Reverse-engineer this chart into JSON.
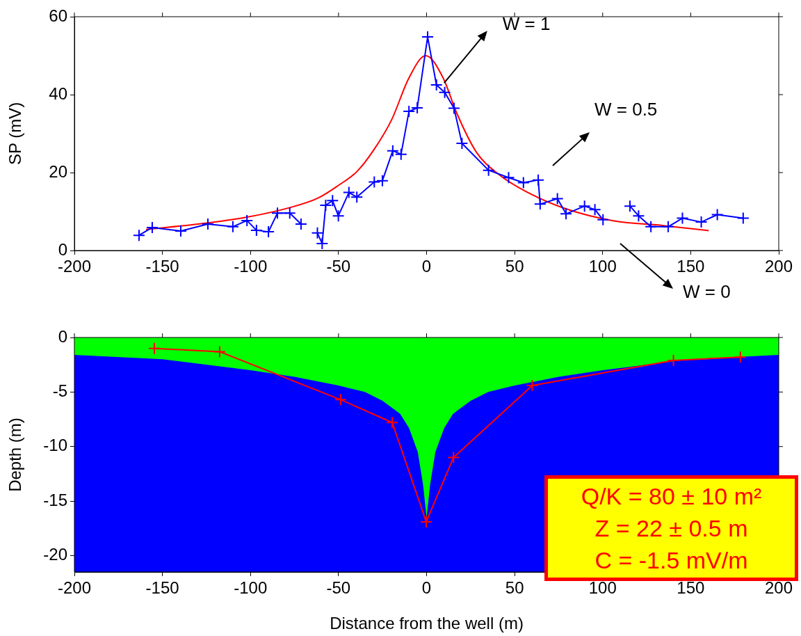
{
  "chart_data": [
    {
      "type": "line",
      "ylabel": "SP (mV)",
      "xlim": [
        -200,
        200
      ],
      "xticks": [
        -200,
        -150,
        -100,
        -50,
        0,
        50,
        100,
        150,
        200
      ],
      "ylim": [
        0,
        60
      ],
      "yticks": [
        0,
        20,
        40,
        60
      ],
      "grid": false,
      "legend": false,
      "annotations": [
        {
          "text": "W = 1",
          "x": 10,
          "y": 43
        },
        "W = 0.5",
        "W = 0"
      ],
      "series": [
        {
          "color": "#0000ff",
          "marker": "cross",
          "x": [
            -163.3,
            -155.8,
            -139.6,
            -124.2,
            -110,
            -102,
            -96.6,
            -89.8,
            -84.7,
            -77.7,
            -71.3,
            -66,
            -62,
            -59.3,
            -57.3,
            -53.4,
            -50.1,
            -44.1,
            -39.6,
            -29.7,
            -25.1,
            -19.2,
            -14.5,
            -10,
            -5.3,
            0.6,
            5.6,
            10.3,
            15.6,
            20.1,
            35.2,
            46.6,
            55,
            63.4,
            64.5,
            74.3,
            79.2,
            89.7,
            95.6,
            100.2,
            106,
            115.5,
            120.4,
            127.4,
            137.2,
            145.3,
            156,
            165.1,
            179.8
          ],
          "values": [
            3.9,
            5.9,
            5.0,
            6.8,
            6.1,
            7.7,
            5.2,
            4.8,
            9.6,
            9.6,
            6.8,
            null,
            4.5,
            1.8,
            11.6,
            12.8,
            8.9,
            14.9,
            13.7,
            17.6,
            17.9,
            25.6,
            24.7,
            35.7,
            36.6,
            54.8,
            42.5,
            40.6,
            36.5,
            27.5,
            20.6,
            18.7,
            17.4,
            18.1,
            11.9,
            13.3,
            9.4,
            11.4,
            10.5,
            7.9,
            null,
            11.4,
            8.9,
            6.1,
            6.1,
            8.3,
            7.3,
            9.2,
            8.3
          ]
        },
        {
          "color": "#ff0000",
          "marker": "none",
          "x": [
            -159.3,
            -123.8,
            -101.4,
            -77.7,
            -61.9,
            -50.1,
            -39.7,
            -30.3,
            -19.8,
            -10,
            -0.5,
            9.4,
            17,
            28.2,
            40.8,
            56.2,
            78.5,
            106.5,
            134.4,
            160.2
          ],
          "values": [
            5.4,
            7.1,
            8.6,
            11,
            13.4,
            16.7,
            20.2,
            25.6,
            33.6,
            44.3,
            50,
            44.3,
            35.4,
            25.3,
            19.6,
            15.2,
            10.8,
            7.6,
            6.4,
            5.1
          ]
        }
      ]
    },
    {
      "type": "area",
      "xlabel": "Distance from the well (m)",
      "ylabel": "Depth (m)",
      "xlim": [
        -200,
        200
      ],
      "xticks": [
        -200,
        -150,
        -100,
        -50,
        0,
        50,
        100,
        150,
        200
      ],
      "ylim": [
        -21.5,
        0
      ],
      "yticks": [
        -20,
        -15,
        -10,
        -5,
        0
      ],
      "grid": false,
      "legend": false,
      "annotations": [
        "Q/K = 80 ± 10 m²",
        "Z = 22 ± 0.5 m",
        "C = -1.5 mV/m"
      ],
      "x": [
        -200,
        -150,
        -100,
        -75,
        -50,
        -35,
        -25,
        -15,
        -10,
        -5,
        -2,
        0,
        2,
        5,
        10,
        15,
        25,
        35,
        50,
        75,
        100,
        150,
        200
      ],
      "series": [
        {
          "type": "area",
          "color": "#00ff00",
          "values": [
            -1.6,
            -2.0,
            -3.0,
            -3.6,
            -4.4,
            -5.0,
            -5.8,
            -7.0,
            -8.3,
            -10.5,
            -13.5,
            -16.5,
            -13.5,
            -10.5,
            -8.3,
            -7.0,
            -5.8,
            -5.0,
            -4.4,
            -3.6,
            -3.0,
            -2.0,
            -1.6
          ]
        },
        {
          "type": "line",
          "color": "#ff0000",
          "marker": "cross",
          "x": [
            -154.6,
            -117.5,
            -48.8,
            -19.5,
            -0.2,
            15.3,
            60,
            140.2,
            178.2
          ],
          "values": [
            -1.0,
            -1.3,
            -5.7,
            -7.8,
            -16.9,
            -11.0,
            -4.4,
            -2.1,
            -1.8
          ]
        }
      ]
    }
  ]
}
